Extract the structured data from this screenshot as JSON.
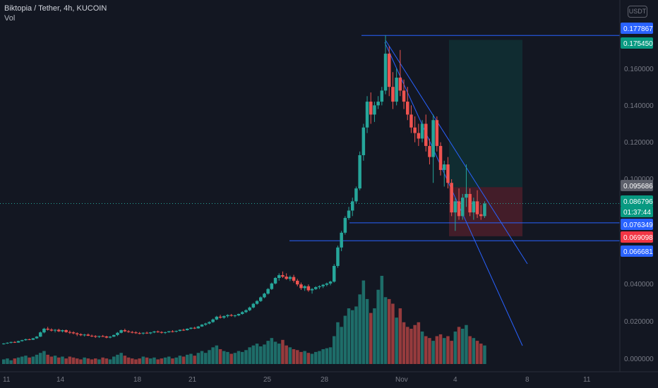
{
  "header": {
    "symbol_line": "Biktopia / Tether, 4h, KUCOIN",
    "volume_label": "Vol",
    "currency_button": "USDT"
  },
  "colors": {
    "background": "#131722",
    "up": "#26a69a",
    "down": "#ef5350",
    "line": "#2962ff",
    "grid_text": "#787b86"
  },
  "chart_data": {
    "type": "candlestick",
    "y_ticks": [
      "0.160000",
      "0.140000",
      "0.120000",
      "0.100000",
      "0.040000",
      "0.020000",
      "0.000000",
      "-0.000000"
    ],
    "x_ticks": [
      "11",
      "14",
      "18",
      "21",
      "25",
      "28",
      "Nov",
      "4",
      "8",
      "11"
    ],
    "price_labels": [
      {
        "text": "0.177867",
        "kind": "blue"
      },
      {
        "text": "0.175450",
        "kind": "green"
      },
      {
        "text": "0.095686",
        "kind": "gray"
      },
      {
        "text": "0.086796",
        "kind": "green"
      },
      {
        "text": "01:37:44",
        "kind": "green"
      },
      {
        "text": "0.076349",
        "kind": "blue"
      },
      {
        "text": "0.069098",
        "kind": "red"
      },
      {
        "text": "0.066681",
        "kind": "blue"
      }
    ],
    "horizontal_levels": [
      0.177867,
      0.076349,
      0.066681
    ],
    "position_tool": {
      "entry": 0.095686,
      "target": 0.17545,
      "stop": 0.069098
    },
    "last_price": 0.086796,
    "ohlc": [
      [
        0.0108,
        0.0112,
        0.0104,
        0.011
      ],
      [
        0.011,
        0.0116,
        0.0108,
        0.0114
      ],
      [
        0.0114,
        0.012,
        0.011,
        0.0118
      ],
      [
        0.0118,
        0.0122,
        0.0113,
        0.0115
      ],
      [
        0.0115,
        0.0125,
        0.0114,
        0.0123
      ],
      [
        0.0123,
        0.013,
        0.012,
        0.0128
      ],
      [
        0.0128,
        0.0136,
        0.0125,
        0.0133
      ],
      [
        0.0133,
        0.0136,
        0.0128,
        0.013
      ],
      [
        0.013,
        0.014,
        0.0129,
        0.0138
      ],
      [
        0.0138,
        0.015,
        0.0135,
        0.0147
      ],
      [
        0.0147,
        0.0175,
        0.0145,
        0.017
      ],
      [
        0.017,
        0.0195,
        0.0165,
        0.019
      ],
      [
        0.019,
        0.02,
        0.018,
        0.0185
      ],
      [
        0.0185,
        0.0192,
        0.0175,
        0.018
      ],
      [
        0.018,
        0.0188,
        0.017,
        0.0184
      ],
      [
        0.0184,
        0.019,
        0.0172,
        0.0176
      ],
      [
        0.0176,
        0.0185,
        0.017,
        0.0182
      ],
      [
        0.0182,
        0.0186,
        0.0168,
        0.0172
      ],
      [
        0.0172,
        0.018,
        0.0162,
        0.017
      ],
      [
        0.017,
        0.0176,
        0.016,
        0.0165
      ],
      [
        0.0165,
        0.017,
        0.015,
        0.016
      ],
      [
        0.016,
        0.0165,
        0.015,
        0.0155
      ],
      [
        0.0155,
        0.0162,
        0.0148,
        0.0158
      ],
      [
        0.0158,
        0.0164,
        0.015,
        0.0152
      ],
      [
        0.0152,
        0.0158,
        0.0145,
        0.015
      ],
      [
        0.015,
        0.0155,
        0.014,
        0.0146
      ],
      [
        0.0146,
        0.0152,
        0.014,
        0.015
      ],
      [
        0.015,
        0.0156,
        0.0145,
        0.0148
      ],
      [
        0.0148,
        0.0152,
        0.0138,
        0.0142
      ],
      [
        0.0142,
        0.015,
        0.0138,
        0.0147
      ],
      [
        0.0147,
        0.0158,
        0.0145,
        0.0156
      ],
      [
        0.0156,
        0.0172,
        0.015,
        0.0168
      ],
      [
        0.0168,
        0.0185,
        0.0165,
        0.0182
      ],
      [
        0.0182,
        0.019,
        0.0172,
        0.0176
      ],
      [
        0.0176,
        0.0182,
        0.0168,
        0.0172
      ],
      [
        0.0172,
        0.0178,
        0.0165,
        0.017
      ],
      [
        0.017,
        0.0176,
        0.0162,
        0.0166
      ],
      [
        0.0166,
        0.0172,
        0.016,
        0.0164
      ],
      [
        0.0164,
        0.017,
        0.0158,
        0.0168
      ],
      [
        0.0168,
        0.0174,
        0.0162,
        0.0165
      ],
      [
        0.0165,
        0.0172,
        0.016,
        0.017
      ],
      [
        0.017,
        0.0178,
        0.0166,
        0.0175
      ],
      [
        0.0175,
        0.018,
        0.0168,
        0.0172
      ],
      [
        0.0172,
        0.0176,
        0.0164,
        0.0168
      ],
      [
        0.0168,
        0.0174,
        0.0162,
        0.0171
      ],
      [
        0.0171,
        0.0178,
        0.0168,
        0.0176
      ],
      [
        0.0176,
        0.0182,
        0.017,
        0.0174
      ],
      [
        0.0174,
        0.018,
        0.017,
        0.0178
      ],
      [
        0.0178,
        0.0186,
        0.0175,
        0.0184
      ],
      [
        0.0184,
        0.019,
        0.0178,
        0.0182
      ],
      [
        0.0182,
        0.0192,
        0.018,
        0.019
      ],
      [
        0.019,
        0.0198,
        0.0186,
        0.0195
      ],
      [
        0.0195,
        0.02,
        0.0188,
        0.0192
      ],
      [
        0.0192,
        0.0205,
        0.019,
        0.0202
      ],
      [
        0.0202,
        0.0215,
        0.02,
        0.0212
      ],
      [
        0.0212,
        0.0222,
        0.0206,
        0.0218
      ],
      [
        0.0218,
        0.023,
        0.0214,
        0.0226
      ],
      [
        0.0226,
        0.0245,
        0.0222,
        0.024
      ],
      [
        0.024,
        0.026,
        0.0236,
        0.0255
      ],
      [
        0.0255,
        0.0265,
        0.0245,
        0.025
      ],
      [
        0.025,
        0.0262,
        0.0244,
        0.0258
      ],
      [
        0.0258,
        0.0268,
        0.025,
        0.0264
      ],
      [
        0.0264,
        0.027,
        0.0256,
        0.026
      ],
      [
        0.026,
        0.0266,
        0.0252,
        0.0262
      ],
      [
        0.0262,
        0.0272,
        0.0258,
        0.027
      ],
      [
        0.027,
        0.0285,
        0.0266,
        0.028
      ],
      [
        0.028,
        0.0295,
        0.0275,
        0.029
      ],
      [
        0.029,
        0.031,
        0.0285,
        0.0305
      ],
      [
        0.0305,
        0.033,
        0.03,
        0.0325
      ],
      [
        0.0325,
        0.0345,
        0.032,
        0.034
      ],
      [
        0.034,
        0.0365,
        0.0335,
        0.036
      ],
      [
        0.036,
        0.0385,
        0.0355,
        0.038
      ],
      [
        0.038,
        0.041,
        0.0375,
        0.0405
      ],
      [
        0.0405,
        0.044,
        0.04,
        0.0435
      ],
      [
        0.0435,
        0.047,
        0.043,
        0.0465
      ],
      [
        0.0465,
        0.049,
        0.045,
        0.048
      ],
      [
        0.048,
        0.05,
        0.0465,
        0.0472
      ],
      [
        0.0472,
        0.049,
        0.0455,
        0.046
      ],
      [
        0.046,
        0.0478,
        0.0448,
        0.047
      ],
      [
        0.047,
        0.0482,
        0.044,
        0.045
      ],
      [
        0.045,
        0.046,
        0.042,
        0.043
      ],
      [
        0.043,
        0.044,
        0.04,
        0.041
      ],
      [
        0.041,
        0.0425,
        0.0395,
        0.042
      ],
      [
        0.042,
        0.043,
        0.039,
        0.0398
      ],
      [
        0.0398,
        0.041,
        0.038,
        0.0405
      ],
      [
        0.0405,
        0.042,
        0.04,
        0.0415
      ],
      [
        0.0415,
        0.0425,
        0.0405,
        0.042
      ],
      [
        0.042,
        0.0432,
        0.041,
        0.0428
      ],
      [
        0.0428,
        0.044,
        0.042,
        0.0435
      ],
      [
        0.0435,
        0.045,
        0.0425,
        0.0445
      ],
      [
        0.0445,
        0.054,
        0.044,
        0.053
      ],
      [
        0.053,
        0.064,
        0.052,
        0.063
      ],
      [
        0.063,
        0.072,
        0.061,
        0.071
      ],
      [
        0.071,
        0.08,
        0.07,
        0.079
      ],
      [
        0.079,
        0.085,
        0.078,
        0.083
      ],
      [
        0.083,
        0.09,
        0.08,
        0.088
      ],
      [
        0.088,
        0.096,
        0.087,
        0.095
      ],
      [
        0.095,
        0.115,
        0.094,
        0.113
      ],
      [
        0.113,
        0.13,
        0.11,
        0.128
      ],
      [
        0.128,
        0.145,
        0.125,
        0.142
      ],
      [
        0.142,
        0.147,
        0.13,
        0.135
      ],
      [
        0.135,
        0.142,
        0.131,
        0.14
      ],
      [
        0.14,
        0.145,
        0.138,
        0.142
      ],
      [
        0.142,
        0.15,
        0.14,
        0.148
      ],
      [
        0.148,
        0.178,
        0.146,
        0.168
      ],
      [
        0.168,
        0.172,
        0.145,
        0.15
      ],
      [
        0.15,
        0.158,
        0.138,
        0.142
      ],
      [
        0.142,
        0.16,
        0.14,
        0.155
      ],
      [
        0.155,
        0.17,
        0.145,
        0.148
      ],
      [
        0.148,
        0.154,
        0.138,
        0.142
      ],
      [
        0.142,
        0.15,
        0.132,
        0.135
      ],
      [
        0.135,
        0.14,
        0.125,
        0.128
      ],
      [
        0.128,
        0.134,
        0.12,
        0.125
      ],
      [
        0.125,
        0.13,
        0.118,
        0.122
      ],
      [
        0.122,
        0.132,
        0.12,
        0.13
      ],
      [
        0.13,
        0.135,
        0.115,
        0.118
      ],
      [
        0.118,
        0.122,
        0.108,
        0.112
      ],
      [
        0.112,
        0.135,
        0.098,
        0.132
      ],
      [
        0.132,
        0.134,
        0.115,
        0.118
      ],
      [
        0.118,
        0.12,
        0.102,
        0.105
      ],
      [
        0.105,
        0.11,
        0.096,
        0.108
      ],
      [
        0.108,
        0.112,
        0.095,
        0.098
      ],
      [
        0.098,
        0.1,
        0.08,
        0.082
      ],
      [
        0.082,
        0.09,
        0.072,
        0.088
      ],
      [
        0.088,
        0.095,
        0.078,
        0.08
      ],
      [
        0.08,
        0.092,
        0.078,
        0.09
      ],
      [
        0.09,
        0.108,
        0.085,
        0.092
      ],
      [
        0.092,
        0.095,
        0.08,
        0.082
      ],
      [
        0.082,
        0.09,
        0.078,
        0.088
      ],
      [
        0.088,
        0.094,
        0.079,
        0.081
      ],
      [
        0.081,
        0.086,
        0.078,
        0.08
      ],
      [
        0.08,
        0.088,
        0.079,
        0.0868
      ]
    ],
    "volume": [
      5,
      6,
      4,
      6,
      7,
      8,
      9,
      7,
      8,
      10,
      12,
      14,
      10,
      8,
      9,
      7,
      8,
      6,
      8,
      7,
      6,
      5,
      7,
      6,
      5,
      6,
      5,
      7,
      6,
      5,
      8,
      10,
      12,
      9,
      7,
      6,
      5,
      6,
      8,
      7,
      6,
      7,
      5,
      6,
      7,
      8,
      6,
      7,
      9,
      8,
      10,
      11,
      9,
      12,
      14,
      12,
      15,
      18,
      20,
      16,
      14,
      13,
      11,
      12,
      14,
      13,
      15,
      18,
      20,
      22,
      19,
      21,
      25,
      28,
      24,
      22,
      26,
      20,
      18,
      16,
      15,
      13,
      14,
      12,
      11,
      13,
      14,
      16,
      17,
      18,
      30,
      45,
      40,
      52,
      60,
      58,
      62,
      75,
      90,
      70,
      55,
      60,
      80,
      95,
      72,
      70,
      65,
      50,
      60,
      45,
      40,
      38,
      42,
      45,
      35,
      30,
      28,
      25,
      30,
      32,
      28,
      30,
      25,
      35,
      40,
      38,
      42,
      30,
      28,
      25,
      22,
      20
    ]
  }
}
